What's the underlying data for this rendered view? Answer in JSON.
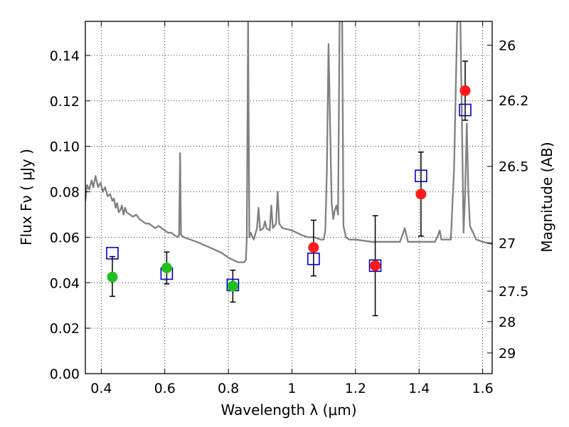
{
  "chart_data": {
    "type": "scatter",
    "xlabel": "Wavelength  λ (μm)",
    "ylabel": "Flux  Fν  ( μJy )",
    "ylabel_right": "Magnitude (AB)",
    "xlim": [
      0.35,
      1.63
    ],
    "ylim": [
      0.0,
      0.155
    ],
    "grid": true,
    "x_ticks": [
      0.4,
      0.6,
      0.8,
      1.0,
      1.2,
      1.4,
      1.6
    ],
    "x_tick_labels": [
      "0.4",
      "0.6",
      "0.8",
      "1",
      "1.2",
      "1.4",
      "1.6"
    ],
    "y_ticks": [
      0.0,
      0.02,
      0.04,
      0.06,
      0.08,
      0.1,
      0.12,
      0.14
    ],
    "y_tick_labels": [
      "0.00",
      "0.02",
      "0.04",
      "0.06",
      "0.08",
      "0.10",
      "0.12",
      "0.14"
    ],
    "right_ticks": [
      {
        "label": "26",
        "flux": 0.1445
      },
      {
        "label": "26.2",
        "flux": 0.1202
      },
      {
        "label": "26.5",
        "flux": 0.0912
      },
      {
        "label": "27",
        "flux": 0.0575
      },
      {
        "label": "27.5",
        "flux": 0.0363
      },
      {
        "label": "28",
        "flux": 0.0229
      },
      {
        "label": "29",
        "flux": 0.0091
      }
    ],
    "template_color": "#808080",
    "template_spectrum": [
      [
        0.35,
        0.076
      ],
      [
        0.355,
        0.083
      ],
      [
        0.362,
        0.081
      ],
      [
        0.37,
        0.085
      ],
      [
        0.375,
        0.082
      ],
      [
        0.382,
        0.087
      ],
      [
        0.39,
        0.082
      ],
      [
        0.398,
        0.084
      ],
      [
        0.405,
        0.08
      ],
      [
        0.412,
        0.082
      ],
      [
        0.42,
        0.078
      ],
      [
        0.428,
        0.079
      ],
      [
        0.435,
        0.076
      ],
      [
        0.44,
        0.077
      ],
      [
        0.445,
        0.073
      ],
      [
        0.45,
        0.075
      ],
      [
        0.455,
        0.071
      ],
      [
        0.46,
        0.072
      ],
      [
        0.465,
        0.074
      ],
      [
        0.47,
        0.07
      ],
      [
        0.475,
        0.073
      ],
      [
        0.48,
        0.071
      ],
      [
        0.49,
        0.07
      ],
      [
        0.5,
        0.069
      ],
      [
        0.51,
        0.07
      ],
      [
        0.52,
        0.068
      ],
      [
        0.53,
        0.067
      ],
      [
        0.54,
        0.066
      ],
      [
        0.55,
        0.066
      ],
      [
        0.56,
        0.065
      ],
      [
        0.57,
        0.064
      ],
      [
        0.58,
        0.065
      ],
      [
        0.59,
        0.064
      ],
      [
        0.6,
        0.063
      ],
      [
        0.61,
        0.062
      ],
      [
        0.62,
        0.062
      ],
      [
        0.63,
        0.061
      ],
      [
        0.64,
        0.06
      ],
      [
        0.645,
        0.061
      ],
      [
        0.648,
        0.097
      ],
      [
        0.651,
        0.061
      ],
      [
        0.66,
        0.06
      ],
      [
        0.7,
        0.058
      ],
      [
        0.75,
        0.055
      ],
      [
        0.78,
        0.053
      ],
      [
        0.8,
        0.051
      ],
      [
        0.83,
        0.049
      ],
      [
        0.85,
        0.049
      ],
      [
        0.855,
        0.05
      ],
      [
        0.858,
        0.06
      ],
      [
        0.862,
        0.155
      ],
      [
        0.866,
        0.06
      ],
      [
        0.87,
        0.062
      ],
      [
        0.88,
        0.059
      ],
      [
        0.89,
        0.064
      ],
      [
        0.895,
        0.073
      ],
      [
        0.9,
        0.063
      ],
      [
        0.91,
        0.064
      ],
      [
        0.915,
        0.067
      ],
      [
        0.92,
        0.064
      ],
      [
        0.93,
        0.063
      ],
      [
        0.935,
        0.074
      ],
      [
        0.94,
        0.064
      ],
      [
        0.95,
        0.066
      ],
      [
        0.955,
        0.08
      ],
      [
        0.96,
        0.066
      ],
      [
        0.97,
        0.064
      ],
      [
        1.0,
        0.063
      ],
      [
        1.03,
        0.061
      ],
      [
        1.05,
        0.06
      ],
      [
        1.07,
        0.06
      ],
      [
        1.09,
        0.059
      ],
      [
        1.1,
        0.059
      ],
      [
        1.105,
        0.063
      ],
      [
        1.11,
        0.09
      ],
      [
        1.115,
        0.145
      ],
      [
        1.12,
        0.11
      ],
      [
        1.125,
        0.075
      ],
      [
        1.13,
        0.068
      ],
      [
        1.135,
        0.072
      ],
      [
        1.14,
        0.074
      ],
      [
        1.145,
        0.07
      ],
      [
        1.15,
        0.155
      ],
      [
        1.158,
        0.155
      ],
      [
        1.162,
        0.065
      ],
      [
        1.17,
        0.06
      ],
      [
        1.18,
        0.059
      ],
      [
        1.2,
        0.059
      ],
      [
        1.25,
        0.058
      ],
      [
        1.3,
        0.058
      ],
      [
        1.34,
        0.058
      ],
      [
        1.355,
        0.064
      ],
      [
        1.365,
        0.058
      ],
      [
        1.4,
        0.058
      ],
      [
        1.45,
        0.058
      ],
      [
        1.46,
        0.061
      ],
      [
        1.465,
        0.063
      ],
      [
        1.47,
        0.059
      ],
      [
        1.5,
        0.059
      ],
      [
        1.51,
        0.09
      ],
      [
        1.52,
        0.155
      ],
      [
        1.53,
        0.155
      ],
      [
        1.54,
        0.062
      ],
      [
        1.545,
        0.08
      ],
      [
        1.55,
        0.11
      ],
      [
        1.555,
        0.08
      ],
      [
        1.56,
        0.065
      ],
      [
        1.58,
        0.059
      ],
      [
        1.6,
        0.058
      ],
      [
        1.63,
        0.057
      ]
    ],
    "series": [
      {
        "marker": "circle",
        "color": "#1fc01f",
        "points": [
          {
            "x": 0.435,
            "y": 0.0425,
            "ylo": 0.034,
            "yhi": 0.0515
          },
          {
            "x": 0.606,
            "y": 0.0465,
            "ylo": 0.0395,
            "yhi": 0.0535
          },
          {
            "x": 0.814,
            "y": 0.0385,
            "ylo": 0.0315,
            "yhi": 0.0455
          }
        ]
      },
      {
        "marker": "circle",
        "color": "#ff1a1a",
        "points": [
          {
            "x": 1.068,
            "y": 0.0555,
            "ylo": 0.043,
            "yhi": 0.0675
          },
          {
            "x": 1.262,
            "y": 0.0475,
            "ylo": 0.0255,
            "yhi": 0.0695
          },
          {
            "x": 1.406,
            "y": 0.079,
            "ylo": 0.0605,
            "yhi": 0.0975
          },
          {
            "x": 1.545,
            "y": 0.1245,
            "ylo": 0.1115,
            "yhi": 0.1375
          }
        ]
      },
      {
        "marker": "square-open",
        "color": "#0000cc",
        "points": [
          {
            "x": 0.435,
            "y": 0.053
          },
          {
            "x": 0.606,
            "y": 0.044
          },
          {
            "x": 0.814,
            "y": 0.039
          },
          {
            "x": 1.068,
            "y": 0.0505
          },
          {
            "x": 1.262,
            "y": 0.0475
          },
          {
            "x": 1.406,
            "y": 0.087
          },
          {
            "x": 1.545,
            "y": 0.116
          }
        ]
      }
    ]
  }
}
